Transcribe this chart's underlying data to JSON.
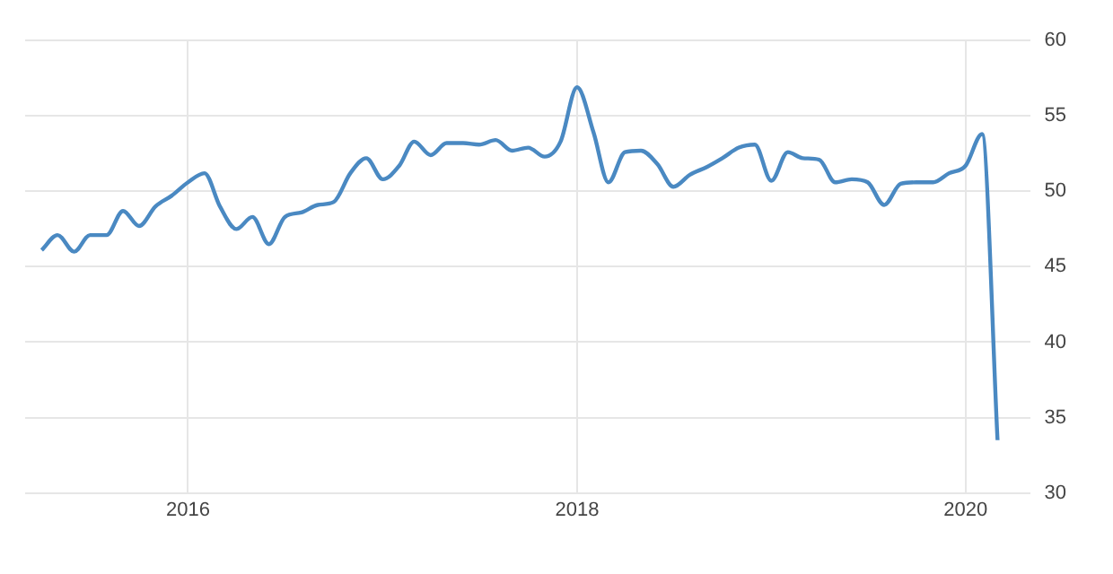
{
  "chart_data": {
    "type": "line",
    "x": [
      "2015-04",
      "2015-05",
      "2015-06",
      "2015-07",
      "2015-08",
      "2015-09",
      "2015-10",
      "2015-11",
      "2015-12",
      "2016-01",
      "2016-02",
      "2016-03",
      "2016-04",
      "2016-05",
      "2016-06",
      "2016-07",
      "2016-08",
      "2016-09",
      "2016-10",
      "2016-11",
      "2016-12",
      "2017-01",
      "2017-02",
      "2017-03",
      "2017-04",
      "2017-05",
      "2017-06",
      "2017-07",
      "2017-08",
      "2017-09",
      "2017-10",
      "2017-11",
      "2017-12",
      "2018-01",
      "2018-02",
      "2018-03",
      "2018-04",
      "2018-05",
      "2018-06",
      "2018-07",
      "2018-08",
      "2018-09",
      "2018-10",
      "2018-11",
      "2018-12",
      "2019-01",
      "2019-02",
      "2019-03",
      "2019-04",
      "2019-05",
      "2019-06",
      "2019-07",
      "2019-08",
      "2019-09",
      "2019-10",
      "2019-11",
      "2019-12",
      "2020-01",
      "2020-02",
      "2020-03"
    ],
    "series": [
      {
        "color": "#4a89c2",
        "values": [
          46.1,
          47.1,
          46.0,
          47.1,
          47.1,
          48.7,
          47.7,
          49.0,
          49.7,
          50.6,
          51.2,
          49.0,
          47.5,
          48.3,
          46.5,
          48.3,
          48.6,
          49.1,
          49.3,
          51.2,
          52.2,
          50.8,
          51.7,
          53.3,
          52.4,
          53.2,
          53.2,
          53.1,
          53.4,
          52.7,
          52.9,
          52.3,
          53.3,
          56.9,
          53.9,
          50.6,
          52.6,
          52.7,
          51.8,
          50.3,
          51.1,
          51.6,
          52.2,
          52.9,
          53.1,
          50.7,
          52.6,
          52.2,
          52.1,
          50.6,
          50.8,
          50.6,
          49.1,
          50.5,
          50.6,
          50.6,
          51.2,
          51.7,
          53.8,
          33.5
        ]
      }
    ],
    "xlim": [
      "2015-03",
      "2020-05"
    ],
    "xticks": [
      {
        "value": "2016-01",
        "label": "2016"
      },
      {
        "value": "2018-01",
        "label": "2018"
      },
      {
        "value": "2020-01",
        "label": "2020"
      }
    ],
    "ylim": [
      30,
      60
    ],
    "yticks": [
      30,
      35,
      40,
      45,
      50,
      55,
      60
    ],
    "grid": true,
    "legend": false,
    "marker": "none",
    "line_style": "solid"
  }
}
